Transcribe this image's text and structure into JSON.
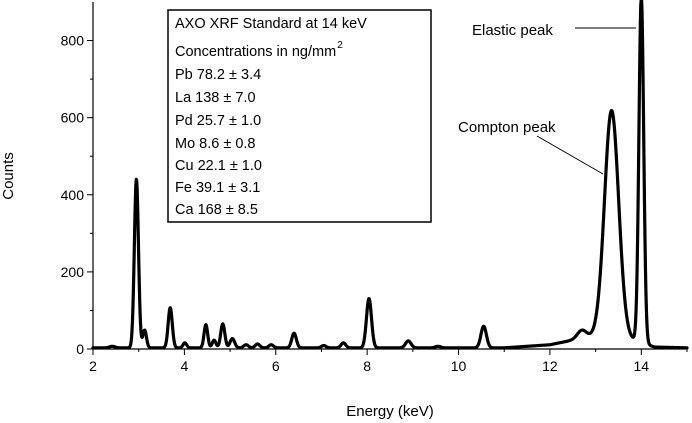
{
  "chart_data": {
    "type": "line",
    "title": "",
    "xlabel": "Energy (keV)",
    "ylabel": "Counts",
    "xlim": [
      2,
      15
    ],
    "ylim": [
      0,
      900
    ],
    "x_ticks": [
      2,
      4,
      6,
      8,
      10,
      12,
      14
    ],
    "y_ticks": [
      0,
      200,
      400,
      600,
      800
    ],
    "grid": false,
    "colors": {
      "line": "#000000",
      "axis": "#000000",
      "background": "#ffffff"
    },
    "legend": {
      "placement": "top-left",
      "title": "AXO XRF Standard at 14 keV",
      "conc_label": "Concentrations in ng/mm",
      "conc_superscript": "2",
      "entries": [
        "Pb 78.2 ± 3.4",
        "La 138 ± 7.0",
        "Pd 25.7 ± 1.0",
        "Mo 8.6 ± 0.8",
        "Cu 22.1 ± 1.0",
        "Fe 39.1 ± 3.1",
        "Ca 168 ± 8.5"
      ]
    },
    "annotations": [
      {
        "text": "Elastic peak",
        "x": 14.0,
        "y": 905
      },
      {
        "text": "Compton peak",
        "x": 13.35,
        "y": 610
      }
    ],
    "baseline": 3,
    "peaks": [
      {
        "x": 2.42,
        "height": 4,
        "width": 0.06
      },
      {
        "x": 2.95,
        "height": 438,
        "width": 0.045
      },
      {
        "x": 3.13,
        "height": 46,
        "width": 0.04
      },
      {
        "x": 3.69,
        "height": 104,
        "width": 0.045
      },
      {
        "x": 4.01,
        "height": 13,
        "width": 0.04
      },
      {
        "x": 4.47,
        "height": 60,
        "width": 0.04
      },
      {
        "x": 4.65,
        "height": 20,
        "width": 0.04
      },
      {
        "x": 4.84,
        "height": 62,
        "width": 0.045
      },
      {
        "x": 5.05,
        "height": 24,
        "width": 0.05
      },
      {
        "x": 5.35,
        "height": 8,
        "width": 0.05
      },
      {
        "x": 5.6,
        "height": 10,
        "width": 0.05
      },
      {
        "x": 5.9,
        "height": 8,
        "width": 0.05
      },
      {
        "x": 6.4,
        "height": 38,
        "width": 0.05
      },
      {
        "x": 7.05,
        "height": 6,
        "width": 0.05
      },
      {
        "x": 7.48,
        "height": 13,
        "width": 0.05
      },
      {
        "x": 8.04,
        "height": 128,
        "width": 0.055
      },
      {
        "x": 8.9,
        "height": 18,
        "width": 0.06
      },
      {
        "x": 9.55,
        "height": 4,
        "width": 0.06
      },
      {
        "x": 10.55,
        "height": 56,
        "width": 0.06
      },
      {
        "x": 12.7,
        "height": 22,
        "width": 0.1
      },
      {
        "x": 13.35,
        "height": 590,
        "width": 0.155
      },
      {
        "x": 14.0,
        "height": 900,
        "width": 0.052
      }
    ],
    "background_curve": [
      {
        "x": 2.0,
        "y": 0
      },
      {
        "x": 11.0,
        "y": 0
      },
      {
        "x": 12.0,
        "y": 8
      },
      {
        "x": 12.5,
        "y": 20
      },
      {
        "x": 13.0,
        "y": 30
      },
      {
        "x": 13.8,
        "y": 20
      },
      {
        "x": 14.3,
        "y": 2
      },
      {
        "x": 15.0,
        "y": 0
      }
    ]
  }
}
